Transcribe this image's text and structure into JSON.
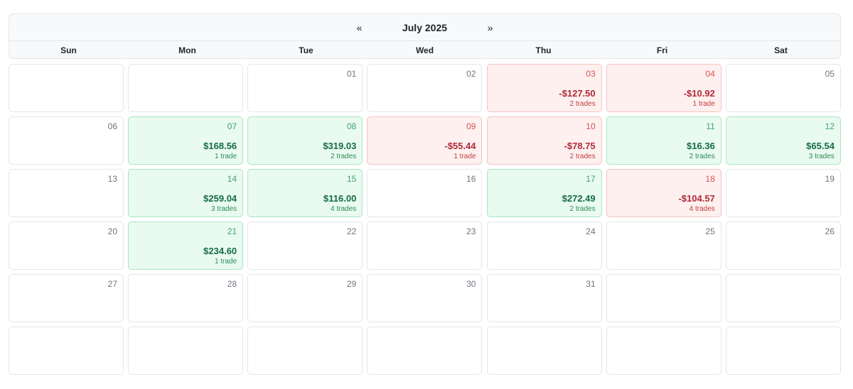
{
  "calendar": {
    "prev_label": "«",
    "next_label": "»",
    "month_label": "July 2025",
    "weekdays": [
      "Sun",
      "Mon",
      "Tue",
      "Wed",
      "Thu",
      "Fri",
      "Sat"
    ],
    "colors": {
      "profit_bg": "#e9faf0",
      "profit_text": "#146c43",
      "loss_bg": "#fdf0ef",
      "loss_text": "#b02a37"
    },
    "cells": [
      {
        "day": "",
        "pnl": "",
        "trades": "",
        "status": "empty"
      },
      {
        "day": "",
        "pnl": "",
        "trades": "",
        "status": "empty"
      },
      {
        "day": "01",
        "pnl": "",
        "trades": "",
        "status": "none"
      },
      {
        "day": "02",
        "pnl": "",
        "trades": "",
        "status": "none"
      },
      {
        "day": "03",
        "pnl": "-$127.50",
        "trades": "2 trades",
        "status": "loss"
      },
      {
        "day": "04",
        "pnl": "-$10.92",
        "trades": "1 trade",
        "status": "loss"
      },
      {
        "day": "05",
        "pnl": "",
        "trades": "",
        "status": "none"
      },
      {
        "day": "06",
        "pnl": "",
        "trades": "",
        "status": "none"
      },
      {
        "day": "07",
        "pnl": "$168.56",
        "trades": "1 trade",
        "status": "profit"
      },
      {
        "day": "08",
        "pnl": "$319.03",
        "trades": "2 trades",
        "status": "profit"
      },
      {
        "day": "09",
        "pnl": "-$55.44",
        "trades": "1 trade",
        "status": "loss"
      },
      {
        "day": "10",
        "pnl": "-$78.75",
        "trades": "2 trades",
        "status": "loss"
      },
      {
        "day": "11",
        "pnl": "$16.36",
        "trades": "2 trades",
        "status": "profit"
      },
      {
        "day": "12",
        "pnl": "$65.54",
        "trades": "3 trades",
        "status": "profit"
      },
      {
        "day": "13",
        "pnl": "",
        "trades": "",
        "status": "none"
      },
      {
        "day": "14",
        "pnl": "$259.04",
        "trades": "3 trades",
        "status": "profit"
      },
      {
        "day": "15",
        "pnl": "$116.00",
        "trades": "4 trades",
        "status": "profit"
      },
      {
        "day": "16",
        "pnl": "",
        "trades": "",
        "status": "none"
      },
      {
        "day": "17",
        "pnl": "$272.49",
        "trades": "2 trades",
        "status": "profit"
      },
      {
        "day": "18",
        "pnl": "-$104.57",
        "trades": "4 trades",
        "status": "loss"
      },
      {
        "day": "19",
        "pnl": "",
        "trades": "",
        "status": "none"
      },
      {
        "day": "20",
        "pnl": "",
        "trades": "",
        "status": "none"
      },
      {
        "day": "21",
        "pnl": "$234.60",
        "trades": "1 trade",
        "status": "profit"
      },
      {
        "day": "22",
        "pnl": "",
        "trades": "",
        "status": "none"
      },
      {
        "day": "23",
        "pnl": "",
        "trades": "",
        "status": "none"
      },
      {
        "day": "24",
        "pnl": "",
        "trades": "",
        "status": "none"
      },
      {
        "day": "25",
        "pnl": "",
        "trades": "",
        "status": "none"
      },
      {
        "day": "26",
        "pnl": "",
        "trades": "",
        "status": "none"
      },
      {
        "day": "27",
        "pnl": "",
        "trades": "",
        "status": "none"
      },
      {
        "day": "28",
        "pnl": "",
        "trades": "",
        "status": "none"
      },
      {
        "day": "29",
        "pnl": "",
        "trades": "",
        "status": "none"
      },
      {
        "day": "30",
        "pnl": "",
        "trades": "",
        "status": "none"
      },
      {
        "day": "31",
        "pnl": "",
        "trades": "",
        "status": "none"
      },
      {
        "day": "",
        "pnl": "",
        "trades": "",
        "status": "empty"
      },
      {
        "day": "",
        "pnl": "",
        "trades": "",
        "status": "empty"
      },
      {
        "day": "",
        "pnl": "",
        "trades": "",
        "status": "empty"
      },
      {
        "day": "",
        "pnl": "",
        "trades": "",
        "status": "empty"
      },
      {
        "day": "",
        "pnl": "",
        "trades": "",
        "status": "empty"
      },
      {
        "day": "",
        "pnl": "",
        "trades": "",
        "status": "empty"
      },
      {
        "day": "",
        "pnl": "",
        "trades": "",
        "status": "empty"
      },
      {
        "day": "",
        "pnl": "",
        "trades": "",
        "status": "empty"
      },
      {
        "day": "",
        "pnl": "",
        "trades": "",
        "status": "empty"
      }
    ]
  }
}
